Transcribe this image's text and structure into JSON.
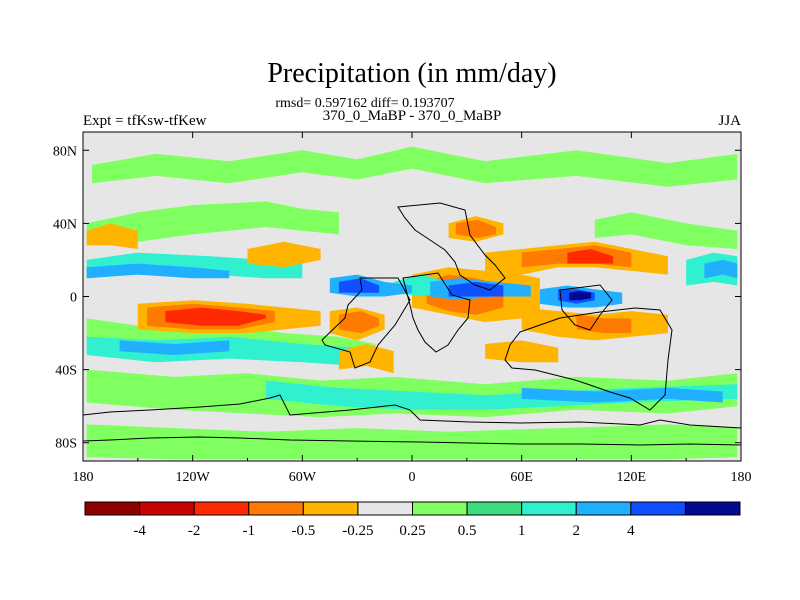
{
  "chart_data": {
    "type": "heatmap",
    "title": "Precipitation (in mm/day)",
    "subtitle_stats": "rmsd= 0.597162 diff= 0.193707",
    "subtitle_cases": "370_0_MaBP - 370_0_MaBP",
    "left_label": "Expt = tfKsw-tfKew",
    "right_label": "JJA",
    "xlim": [
      -180,
      180
    ],
    "ylim": [
      -90,
      90
    ],
    "x_ticks": [
      {
        "value": -180,
        "label": "180"
      },
      {
        "value": -120,
        "label": "120W"
      },
      {
        "value": -60,
        "label": "60W"
      },
      {
        "value": 0,
        "label": "0"
      },
      {
        "value": 60,
        "label": "60E"
      },
      {
        "value": 120,
        "label": "120E"
      },
      {
        "value": 180,
        "label": "180"
      }
    ],
    "y_ticks": [
      {
        "value": 80,
        "label": "80N"
      },
      {
        "value": 40,
        "label": "40N"
      },
      {
        "value": 0,
        "label": "0"
      },
      {
        "value": -40,
        "label": "40S"
      },
      {
        "value": -80,
        "label": "80S"
      }
    ],
    "background_color": "#e6e6e6",
    "colorbar": {
      "colors": [
        "#8c0000",
        "#c80000",
        "#ff2a00",
        "#ff7a00",
        "#ffb400",
        "#e6e6e6",
        "#80ff60",
        "#3cdc80",
        "#30f0d0",
        "#20b0ff",
        "#1050ff",
        "#000a90"
      ],
      "labels": [
        "-4",
        "-2",
        "-1",
        "-0.5",
        "-0.25",
        "0.25",
        "0.5",
        "1",
        "2",
        "4"
      ]
    },
    "regions": [
      {
        "level": "0.25",
        "lon": [
          -175,
          -140,
          -100,
          -60,
          -30,
          0,
          40,
          90,
          140,
          178
        ],
        "lat": [
          72,
          78,
          74,
          80,
          75,
          82,
          74,
          80,
          73,
          78
        ],
        "lat2": [
          62,
          66,
          62,
          68,
          64,
          70,
          62,
          66,
          60,
          64
        ]
      },
      {
        "level": "0.25",
        "lon": [
          -178,
          -150,
          -120,
          -80,
          -60,
          -40
        ],
        "lat": [
          40,
          46,
          50,
          52,
          48,
          46
        ],
        "lat2": [
          28,
          30,
          34,
          38,
          36,
          34
        ]
      },
      {
        "level": "0.25",
        "lon": [
          100,
          120,
          150,
          178
        ],
        "lat": [
          42,
          46,
          40,
          36
        ],
        "lat2": [
          32,
          34,
          28,
          26
        ]
      },
      {
        "level": "0.25",
        "lon": [
          -178,
          -150,
          -110,
          -70,
          -40,
          -20
        ],
        "lat": [
          -12,
          -16,
          -14,
          -20,
          -22,
          -26
        ],
        "lat2": [
          -24,
          -30,
          -28,
          -30,
          -34,
          -36
        ]
      },
      {
        "level": "0.25",
        "lon": [
          -178,
          -130,
          -90,
          -50,
          -10,
          40,
          90,
          140,
          178
        ],
        "lat": [
          -40,
          -44,
          -42,
          -46,
          -44,
          -48,
          -44,
          -46,
          -42
        ],
        "lat2": [
          -58,
          -62,
          -64,
          -66,
          -64,
          -66,
          -62,
          -64,
          -60
        ]
      },
      {
        "level": "0.25",
        "lon": [
          -178,
          -130,
          -80,
          -30,
          20,
          80,
          140,
          178
        ],
        "lat": [
          -70,
          -72,
          -74,
          -72,
          -74,
          -72,
          -70,
          -72
        ],
        "lat2": [
          -88,
          -89,
          -89,
          -89,
          -89,
          -89,
          -89,
          -88
        ]
      },
      {
        "level": "0.5",
        "lon": [
          -178,
          -150,
          -110,
          -80,
          -60
        ],
        "lat": [
          20,
          24,
          22,
          20,
          18
        ],
        "lat2": [
          10,
          12,
          12,
          10,
          10
        ]
      },
      {
        "level": "1",
        "lon": [
          -178,
          -150,
          -120,
          -100
        ],
        "lat": [
          16,
          18,
          16,
          14
        ],
        "lat2": [
          10,
          12,
          10,
          10
        ]
      },
      {
        "level": "0.5",
        "lon": [
          150,
          165,
          178
        ],
        "lat": [
          20,
          24,
          22
        ],
        "lat2": [
          6,
          8,
          6
        ]
      },
      {
        "level": "1",
        "lon": [
          160,
          170,
          178
        ],
        "lat": [
          18,
          20,
          18
        ],
        "lat2": [
          10,
          12,
          10
        ]
      },
      {
        "level": "0.5",
        "lon": [
          -178,
          -140,
          -100,
          -60,
          -30
        ],
        "lat": [
          -22,
          -24,
          -22,
          -26,
          -28
        ],
        "lat2": [
          -32,
          -36,
          -34,
          -36,
          -38
        ]
      },
      {
        "level": "1",
        "lon": [
          -160,
          -130,
          -100
        ],
        "lat": [
          -24,
          -26,
          -24
        ],
        "lat2": [
          -30,
          -32,
          -30
        ]
      },
      {
        "level": "0.5",
        "lon": [
          -80,
          -40,
          0,
          40,
          80,
          120,
          178
        ],
        "lat": [
          -46,
          -50,
          -52,
          -54,
          -52,
          -50,
          -48
        ],
        "lat2": [
          -56,
          -60,
          -62,
          -62,
          -60,
          -58,
          -56
        ]
      },
      {
        "level": "1",
        "lon": [
          60,
          100,
          140,
          170
        ],
        "lat": [
          -50,
          -52,
          -50,
          -52
        ],
        "lat2": [
          -56,
          -58,
          -56,
          -58
        ]
      },
      {
        "level": "-0.25",
        "lon": [
          -150,
          -120,
          -90,
          -70,
          -50
        ],
        "lat": [
          -4,
          -2,
          -4,
          -6,
          -8
        ],
        "lat2": [
          -18,
          -20,
          -20,
          -18,
          -16
        ]
      },
      {
        "level": "-0.5",
        "lon": [
          -145,
          -120,
          -95,
          -75
        ],
        "lat": [
          -6,
          -4,
          -6,
          -8
        ],
        "lat2": [
          -16,
          -18,
          -18,
          -14
        ]
      },
      {
        "level": "-1",
        "lon": [
          -135,
          -115,
          -95,
          -80
        ],
        "lat": [
          -8,
          -6,
          -8,
          -10
        ],
        "lat2": [
          -14,
          -16,
          -16,
          -12
        ]
      },
      {
        "level": "-0.25",
        "lon": [
          -178,
          -165,
          -150
        ],
        "lat": [
          36,
          40,
          36
        ],
        "lat2": [
          28,
          28,
          26
        ]
      },
      {
        "level": "-0.25",
        "lon": [
          -90,
          -70,
          -50
        ],
        "lat": [
          26,
          30,
          26
        ],
        "lat2": [
          18,
          16,
          20
        ]
      },
      {
        "level": "-0.25",
        "lon": [
          -45,
          -30,
          -15
        ],
        "lat": [
          -8,
          -6,
          -10
        ],
        "lat2": [
          -20,
          -24,
          -18
        ]
      },
      {
        "level": "-0.5",
        "lon": [
          -40,
          -28,
          -18
        ],
        "lat": [
          -10,
          -8,
          -12
        ],
        "lat2": [
          -18,
          -20,
          -16
        ]
      },
      {
        "level": "-0.25",
        "lon": [
          -40,
          -25,
          -10
        ],
        "lat": [
          -30,
          -26,
          -30
        ],
        "lat2": [
          -40,
          -38,
          -42
        ]
      },
      {
        "level": "-0.25",
        "lon": [
          0,
          20,
          40,
          60,
          70
        ],
        "lat": [
          12,
          16,
          14,
          12,
          10
        ],
        "lat2": [
          -6,
          -10,
          -14,
          -12,
          -8
        ]
      },
      {
        "level": "-0.5",
        "lon": [
          8,
          20,
          35,
          50
        ],
        "lat": [
          8,
          12,
          10,
          6
        ],
        "lat2": [
          -4,
          -8,
          -10,
          -6
        ]
      },
      {
        "level": "-0.25",
        "lon": [
          20,
          35,
          50
        ],
        "lat": [
          40,
          44,
          40
        ],
        "lat2": [
          32,
          30,
          34
        ]
      },
      {
        "level": "-0.5",
        "lon": [
          24,
          36,
          46
        ],
        "lat": [
          40,
          42,
          38
        ],
        "lat2": [
          34,
          32,
          34
        ]
      },
      {
        "level": "-0.25",
        "lon": [
          40,
          60,
          80,
          100,
          120,
          140
        ],
        "lat": [
          24,
          26,
          28,
          30,
          26,
          22
        ],
        "lat2": [
          14,
          12,
          16,
          16,
          14,
          12
        ]
      },
      {
        "level": "-0.5",
        "lon": [
          60,
          80,
          100,
          120
        ],
        "lat": [
          24,
          26,
          28,
          24
        ],
        "lat2": [
          16,
          18,
          18,
          16
        ]
      },
      {
        "level": "-1",
        "lon": [
          85,
          98,
          110
        ],
        "lat": [
          24,
          26,
          22
        ],
        "lat2": [
          18,
          18,
          18
        ]
      },
      {
        "level": "-0.25",
        "lon": [
          60,
          80,
          100,
          120,
          140
        ],
        "lat": [
          -6,
          -8,
          -10,
          -8,
          -10
        ],
        "lat2": [
          -18,
          -22,
          -24,
          -22,
          -20
        ]
      },
      {
        "level": "-0.5",
        "lon": [
          90,
          105,
          120
        ],
        "lat": [
          -10,
          -12,
          -12
        ],
        "lat2": [
          -18,
          -20,
          -20
        ]
      },
      {
        "level": "-0.25",
        "lon": [
          40,
          60,
          80
        ],
        "lat": [
          -26,
          -24,
          -28
        ],
        "lat2": [
          -34,
          -36,
          -36
        ]
      },
      {
        "level": "0.5",
        "lon": [
          -10,
          5,
          20
        ],
        "lat": [
          8,
          12,
          8
        ],
        "lat2": [
          2,
          0,
          2
        ]
      },
      {
        "level": "1",
        "lon": [
          -45,
          -30,
          -15,
          0
        ],
        "lat": [
          10,
          12,
          8,
          6
        ],
        "lat2": [
          2,
          0,
          0,
          2
        ]
      },
      {
        "level": "2",
        "lon": [
          -40,
          -28,
          -18
        ],
        "lat": [
          8,
          10,
          6
        ],
        "lat2": [
          2,
          2,
          2
        ]
      },
      {
        "level": "1",
        "lon": [
          10,
          25,
          45,
          65
        ],
        "lat": [
          8,
          10,
          8,
          6
        ],
        "lat2": [
          0,
          -2,
          0,
          0
        ]
      },
      {
        "level": "2",
        "lon": [
          20,
          35,
          50
        ],
        "lat": [
          6,
          8,
          6
        ],
        "lat2": [
          0,
          0,
          0
        ]
      },
      {
        "level": "1",
        "lon": [
          70,
          85,
          100,
          115
        ],
        "lat": [
          4,
          6,
          4,
          2
        ],
        "lat2": [
          -4,
          -6,
          -6,
          -4
        ]
      },
      {
        "level": "2",
        "lon": [
          80,
          90,
          100
        ],
        "lat": [
          4,
          4,
          2
        ],
        "lat2": [
          -2,
          -4,
          -2
        ]
      },
      {
        "level": "4",
        "lon": [
          86,
          92,
          98
        ],
        "lat": [
          2,
          3,
          2
        ],
        "lat2": [
          -2,
          -2,
          -1
        ]
      }
    ]
  }
}
